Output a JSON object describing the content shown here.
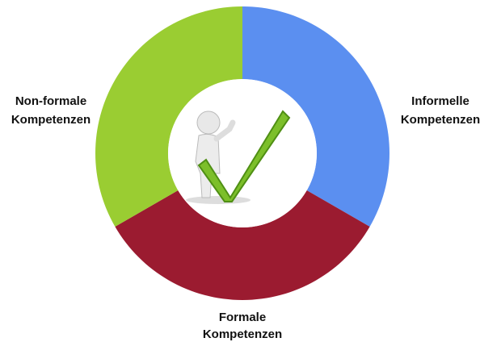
{
  "segments": [
    {
      "label": [
        "Informelle",
        "Kompetenzen"
      ]
    },
    {
      "label": [
        "Formale",
        "Kompetenzen"
      ]
    },
    {
      "label": [
        "Non-formale",
        "Kompetenzen"
      ]
    }
  ]
}
